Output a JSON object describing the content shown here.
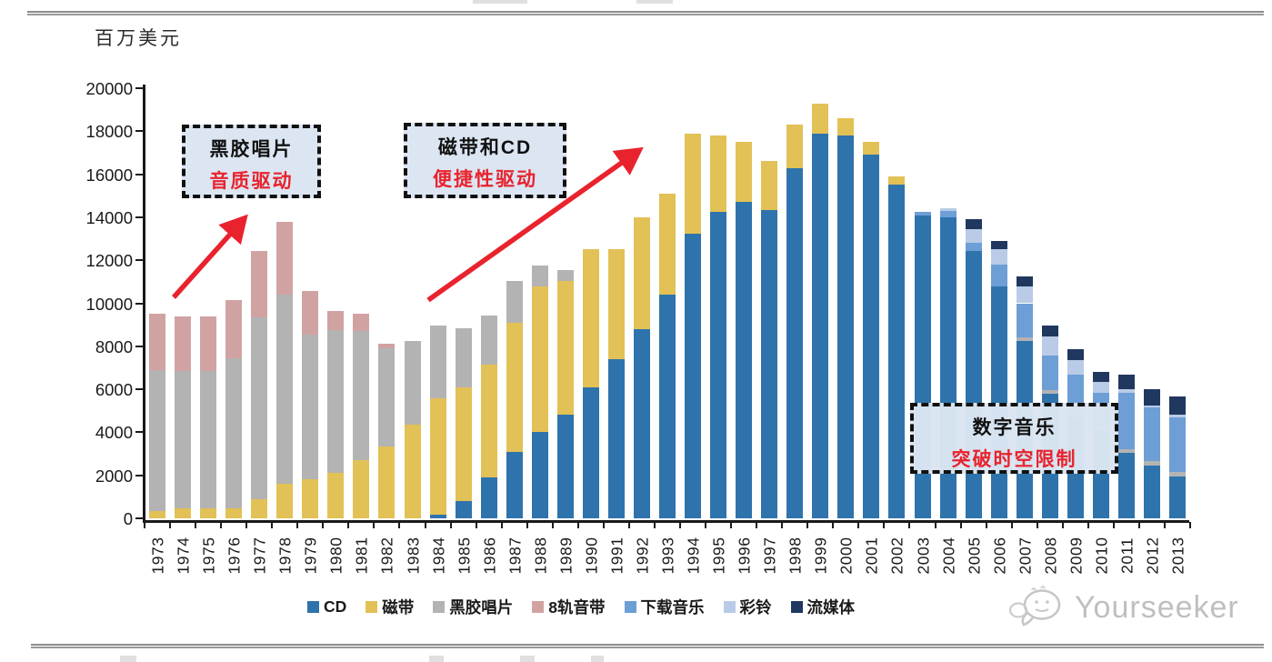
{
  "page": {
    "unit_label": "百万美元",
    "watermark_text": "Yourseeker",
    "watermark_icon": "wechat-icon"
  },
  "annotations": [
    {
      "line1": "黑胶唱片",
      "line2": "音质驱动"
    },
    {
      "line1": "磁带和CD",
      "line2": "便捷性驱动"
    },
    {
      "line1": "数字音乐",
      "line2": "突破时空限制"
    }
  ],
  "colors": {
    "cd": "#2e73ac",
    "cassette": "#e2c156",
    "vinyl": "#b3b3b3",
    "eight_track": "#d0a3a2",
    "downloads": "#6d9ed6",
    "ringtones": "#b9cbe7",
    "streaming": "#20375f",
    "arrow_red": "#e8232d",
    "callout_fill": "#dbe5f2",
    "axis": "#1a1a1a",
    "watermark_gray": "#bfbfbf"
  },
  "chart_data": {
    "type": "bar",
    "stacked": true,
    "title": "",
    "ylabel": "百万美元",
    "xlabel": "",
    "ylim": [
      0,
      20000
    ],
    "ytick_step": 2000,
    "grid": false,
    "legend_position": "bottom",
    "categories": [
      1973,
      1974,
      1975,
      1976,
      1977,
      1978,
      1979,
      1980,
      1981,
      1982,
      1983,
      1984,
      1985,
      1986,
      1987,
      1988,
      1989,
      1990,
      1991,
      1992,
      1993,
      1994,
      1995,
      1996,
      1997,
      1998,
      1999,
      2000,
      2001,
      2002,
      2003,
      2004,
      2005,
      2006,
      2007,
      2008,
      2009,
      2010,
      2011,
      2012,
      2013
    ],
    "series": [
      {
        "name": "CD",
        "color": "#2e73ac",
        "values": [
          0,
          0,
          0,
          0,
          0,
          0,
          0,
          0,
          0,
          0,
          0,
          150,
          800,
          1900,
          3100,
          4000,
          4800,
          6100,
          7400,
          8800,
          10400,
          13250,
          14250,
          14700,
          14350,
          16300,
          17900,
          17800,
          16900,
          15500,
          14100,
          14000,
          12450,
          10800,
          8250,
          5800,
          4700,
          4100,
          3050,
          2450,
          1950
        ]
      },
      {
        "name": "磁带",
        "color": "#e2c156",
        "values": [
          350,
          450,
          450,
          450,
          900,
          1600,
          1800,
          2100,
          2700,
          3350,
          4350,
          5450,
          5280,
          5250,
          6000,
          6800,
          6250,
          6400,
          5100,
          5200,
          4700,
          4650,
          3550,
          2800,
          2250,
          2000,
          1400,
          800,
          600,
          400,
          0,
          0,
          0,
          0,
          0,
          0,
          0,
          0,
          0,
          0,
          0
        ]
      },
      {
        "name": "黑胶唱片",
        "color": "#b3b3b3",
        "values": [
          6550,
          6400,
          6400,
          7000,
          8450,
          8800,
          6750,
          6650,
          6000,
          4550,
          3900,
          3350,
          2750,
          2300,
          1950,
          950,
          500,
          0,
          0,
          0,
          0,
          0,
          0,
          0,
          0,
          0,
          0,
          0,
          0,
          0,
          0,
          0,
          0,
          0,
          150,
          150,
          150,
          150,
          150,
          200,
          210
        ]
      },
      {
        "name": "8轨音带",
        "color": "#d0a3a2",
        "values": [
          2600,
          2550,
          2550,
          2700,
          3100,
          3400,
          2000,
          900,
          800,
          200,
          0,
          0,
          0,
          0,
          0,
          0,
          0,
          0,
          0,
          0,
          0,
          0,
          0,
          0,
          0,
          0,
          0,
          0,
          0,
          0,
          0,
          0,
          0,
          0,
          0,
          0,
          0,
          0,
          0,
          0,
          0
        ]
      },
      {
        "name": "下载音乐",
        "color": "#6d9ed6",
        "values": [
          0,
          0,
          0,
          0,
          0,
          0,
          0,
          0,
          0,
          0,
          0,
          0,
          0,
          0,
          0,
          0,
          0,
          0,
          0,
          0,
          0,
          0,
          0,
          0,
          0,
          0,
          0,
          0,
          0,
          0,
          150,
          300,
          350,
          1000,
          1600,
          1600,
          1850,
          1600,
          2650,
          2500,
          2550
        ]
      },
      {
        "name": "彩铃",
        "color": "#b9cbe7",
        "values": [
          0,
          0,
          0,
          0,
          0,
          0,
          0,
          0,
          0,
          0,
          0,
          0,
          0,
          0,
          0,
          0,
          0,
          0,
          0,
          0,
          0,
          0,
          0,
          0,
          0,
          0,
          0,
          0,
          0,
          0,
          0,
          100,
          650,
          700,
          800,
          900,
          650,
          500,
          150,
          100,
          100
        ]
      },
      {
        "name": "流媒体",
        "color": "#20375f",
        "values": [
          0,
          0,
          0,
          0,
          0,
          0,
          0,
          0,
          0,
          0,
          0,
          0,
          0,
          0,
          0,
          0,
          0,
          0,
          0,
          0,
          0,
          0,
          0,
          0,
          0,
          0,
          0,
          0,
          0,
          0,
          0,
          0,
          450,
          400,
          450,
          500,
          500,
          450,
          700,
          750,
          840
        ]
      }
    ],
    "annotations": [
      {
        "text": "黑胶唱片 音质驱动",
        "arrow": true
      },
      {
        "text": "磁带和CD 便捷性驱动",
        "arrow": true
      },
      {
        "text": "数字音乐 突破时空限制",
        "arrow": false
      }
    ]
  },
  "geometry_labels": {
    "yticks": [
      "0",
      "2000",
      "4000",
      "6000",
      "8000",
      "10000",
      "12000",
      "14000",
      "16000",
      "18000",
      "20000"
    ]
  }
}
